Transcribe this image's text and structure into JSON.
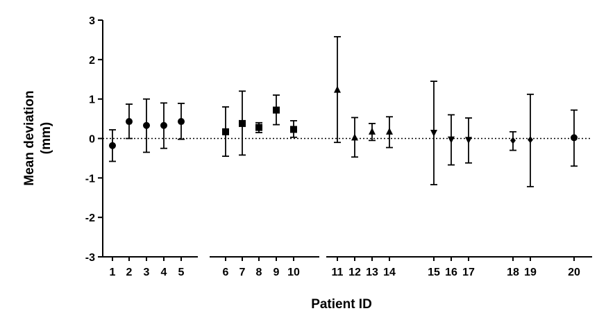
{
  "chart_data": {
    "type": "scatter",
    "title": "",
    "xlabel": "Patient ID",
    "ylabel_lines": [
      "Mean deviation",
      "(mm)"
    ],
    "ylim": [
      -3,
      3
    ],
    "yticks": [
      -3,
      -2,
      -1,
      0,
      1,
      2,
      3
    ],
    "reference_line": {
      "y": 0,
      "style": "dotted"
    },
    "grid": false,
    "legend": "none",
    "points": [
      {
        "id": "1",
        "mean": -0.18,
        "low": -0.58,
        "high": 0.22,
        "marker": "circle"
      },
      {
        "id": "2",
        "mean": 0.43,
        "low": 0.0,
        "high": 0.87,
        "marker": "circle"
      },
      {
        "id": "3",
        "mean": 0.33,
        "low": -0.35,
        "high": 1.0,
        "marker": "circle"
      },
      {
        "id": "4",
        "mean": 0.33,
        "low": -0.25,
        "high": 0.9,
        "marker": "circle"
      },
      {
        "id": "5",
        "mean": 0.43,
        "low": -0.02,
        "high": 0.89,
        "marker": "circle"
      },
      {
        "id": "6",
        "mean": 0.17,
        "low": -0.45,
        "high": 0.8,
        "marker": "square"
      },
      {
        "id": "7",
        "mean": 0.38,
        "low": -0.42,
        "high": 1.2,
        "marker": "square"
      },
      {
        "id": "8",
        "mean": 0.28,
        "low": 0.15,
        "high": 0.4,
        "marker": "square"
      },
      {
        "id": "9",
        "mean": 0.72,
        "low": 0.35,
        "high": 1.1,
        "marker": "square"
      },
      {
        "id": "10",
        "mean": 0.23,
        "low": 0.03,
        "high": 0.45,
        "marker": "square"
      },
      {
        "id": "11",
        "mean": 1.23,
        "low": -0.1,
        "high": 2.58,
        "marker": "triangle-up"
      },
      {
        "id": "12",
        "mean": 0.02,
        "low": -0.47,
        "high": 0.53,
        "marker": "triangle-up"
      },
      {
        "id": "13",
        "mean": 0.17,
        "low": -0.05,
        "high": 0.38,
        "marker": "triangle-up"
      },
      {
        "id": "14",
        "mean": 0.17,
        "low": -0.23,
        "high": 0.55,
        "marker": "triangle-up"
      },
      {
        "id": "15",
        "mean": 0.15,
        "low": -1.17,
        "high": 1.45,
        "marker": "triangle-down"
      },
      {
        "id": "16",
        "mean": -0.02,
        "low": -0.67,
        "high": 0.6,
        "marker": "triangle-down"
      },
      {
        "id": "17",
        "mean": -0.03,
        "low": -0.62,
        "high": 0.52,
        "marker": "triangle-down"
      },
      {
        "id": "18",
        "mean": -0.05,
        "low": -0.3,
        "high": 0.17,
        "marker": "diamond"
      },
      {
        "id": "19",
        "mean": -0.03,
        "low": -1.22,
        "high": 1.12,
        "marker": "diamond"
      },
      {
        "id": "20",
        "mean": 0.02,
        "low": -0.7,
        "high": 0.72,
        "marker": "circle"
      }
    ]
  }
}
